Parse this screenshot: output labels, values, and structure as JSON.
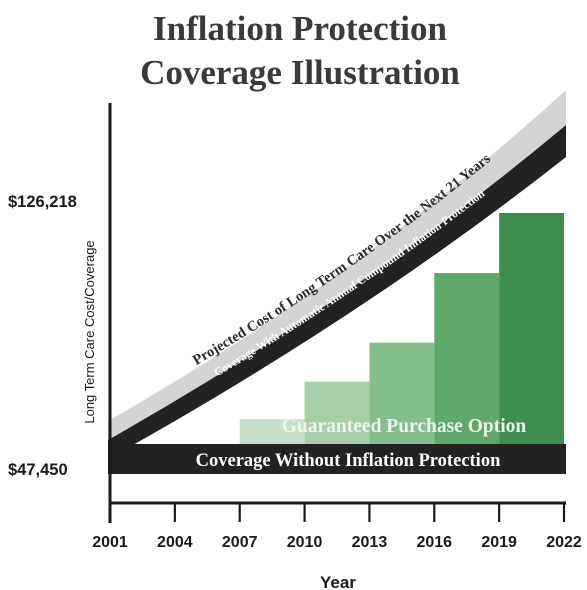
{
  "chart_data": {
    "type": "area",
    "title": "Inflation Protection",
    "subtitle": "Coverage Illustration",
    "xlabel": "Year",
    "ylabel": "Long Term Care Cost/Coverage",
    "x_ticks": [
      "2001",
      "2004",
      "2007",
      "2010",
      "2013",
      "2016",
      "2019",
      "2022"
    ],
    "y_ticks": [
      {
        "label": "$126,218",
        "value": 126218
      },
      {
        "label": "$47,450",
        "value": 47450
      }
    ],
    "grid": false,
    "bands": [
      {
        "label": "Projected Cost of Long Term Care Over the Next 21 Years",
        "color": "#d3d4d6"
      },
      {
        "label": "Coverage With Automatic Annual Compound  Inflation Protection",
        "color": "#222222"
      },
      {
        "label": "Coverage Without Inflation Protection",
        "color": "#222222"
      }
    ],
    "steps_label": "Guaranteed Purchase Option",
    "steps": [
      {
        "start": 2004,
        "end": 2007,
        "value": 49500,
        "color": "#e6efe6"
      },
      {
        "start": 2007,
        "end": 2010,
        "value": 60200,
        "color": "#c7dfc8"
      },
      {
        "start": 2010,
        "end": 2013,
        "value": 72200,
        "color": "#a6cfa9"
      },
      {
        "start": 2013,
        "end": 2016,
        "value": 84700,
        "color": "#84be89"
      },
      {
        "start": 2016,
        "end": 2019,
        "value": 107000,
        "color": "#5fa869"
      },
      {
        "start": 2019,
        "end": 2022,
        "value": 126218,
        "color": "#3d8e4d"
      }
    ]
  }
}
